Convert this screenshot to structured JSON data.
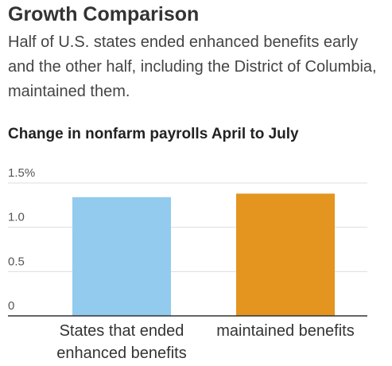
{
  "chart_data": {
    "type": "bar",
    "title": "Growth Comparison",
    "subtitle": "Half of U.S. states ended enhanced benefits early and the other half, including the District of Columbia, maintained them.",
    "y_axis_title": "Change in nonfarm payrolls April to July",
    "categories": [
      "States that ended enhanced benefits",
      "maintained benefits"
    ],
    "values": [
      1.34,
      1.38
    ],
    "colors": [
      "#92cbee",
      "#e3951f"
    ],
    "ylim": [
      0,
      1.5
    ],
    "yticks": [
      0,
      0.5,
      {
        "value": 1,
        "label": "1.0"
      },
      {
        "value": 1.5,
        "label": "1.5%"
      }
    ],
    "grid": true
  }
}
